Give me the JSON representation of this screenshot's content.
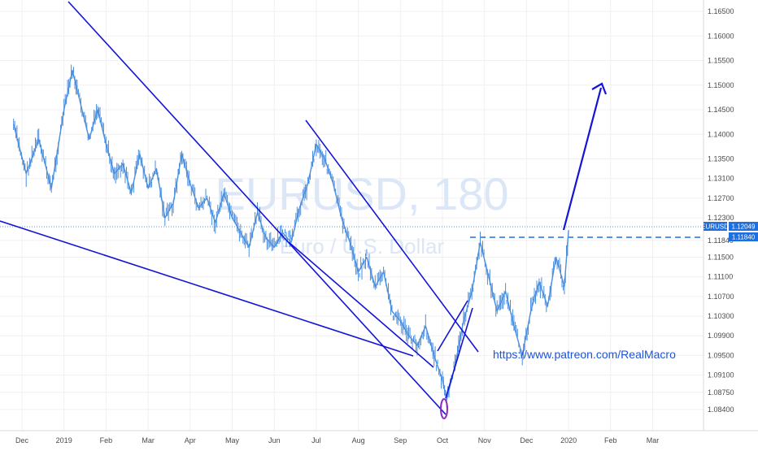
{
  "watermark": {
    "title": "EURUSD, 180",
    "subtitle": "Euro / U.S. Dollar"
  },
  "annotation": {
    "link": "https://www.patreon.com/RealMacro"
  },
  "price_tags": {
    "current": {
      "symbol": "EURUSD",
      "value": "1.12049"
    },
    "resistance": {
      "value": "1.11840"
    }
  },
  "colors": {
    "series": "#4a8fe0",
    "trendline": "#1414d6",
    "marker": "#8a2bbf",
    "tag_bg": "#1e6fe0",
    "grid": "#f0f0f0"
  },
  "chart_data": {
    "type": "line",
    "symbol": "EURUSD",
    "timeframe": "180",
    "ylim": [
      1.0825,
      1.1665
    ],
    "y_ticks": [
      "1.16500",
      "1.16000",
      "1.15500",
      "1.15000",
      "1.14500",
      "1.14000",
      "1.13500",
      "1.13100",
      "1.12700",
      "1.12300",
      "1.11840",
      "1.11500",
      "1.11100",
      "1.10700",
      "1.10300",
      "1.09900",
      "1.09500",
      "1.09100",
      "1.08750",
      "1.08400"
    ],
    "x_ticks": [
      "Dec",
      "2019",
      "Feb",
      "Mar",
      "Apr",
      "May",
      "Jun",
      "Jul",
      "Aug",
      "Sep",
      "Oct",
      "Nov",
      "Dec",
      "2020",
      "Feb",
      "Mar"
    ],
    "x_months": [
      -1,
      0,
      1,
      2,
      3,
      4,
      5,
      6,
      7,
      8,
      9,
      10,
      11,
      12,
      13,
      14
    ],
    "x": [
      -1.2,
      -0.9,
      -0.6,
      -0.3,
      0.0,
      0.2,
      0.4,
      0.6,
      0.8,
      1.0,
      1.2,
      1.4,
      1.6,
      1.8,
      2.0,
      2.2,
      2.4,
      2.6,
      2.8,
      3.0,
      3.2,
      3.4,
      3.6,
      3.8,
      4.0,
      4.2,
      4.4,
      4.6,
      4.8,
      5.0,
      5.2,
      5.4,
      5.6,
      5.8,
      6.0,
      6.2,
      6.4,
      6.6,
      6.8,
      7.0,
      7.2,
      7.4,
      7.6,
      7.8,
      8.0,
      8.2,
      8.4,
      8.6,
      8.8,
      9.0,
      9.1,
      9.3,
      9.5,
      9.7,
      9.9,
      10.1,
      10.3,
      10.5,
      10.7,
      10.9,
      11.1,
      11.3,
      11.5,
      11.7,
      11.9,
      12.0
    ],
    "y": [
      1.142,
      1.132,
      1.139,
      1.129,
      1.145,
      1.153,
      1.146,
      1.139,
      1.145,
      1.138,
      1.132,
      1.134,
      1.128,
      1.136,
      1.129,
      1.133,
      1.123,
      1.126,
      1.136,
      1.13,
      1.125,
      1.127,
      1.122,
      1.128,
      1.123,
      1.12,
      1.117,
      1.124,
      1.119,
      1.117,
      1.12,
      1.118,
      1.125,
      1.13,
      1.138,
      1.135,
      1.13,
      1.123,
      1.118,
      1.112,
      1.115,
      1.109,
      1.112,
      1.104,
      1.102,
      1.099,
      1.097,
      1.101,
      1.095,
      1.09,
      1.086,
      1.093,
      1.102,
      1.108,
      1.118,
      1.111,
      1.104,
      1.108,
      1.101,
      1.095,
      1.104,
      1.11,
      1.105,
      1.115,
      1.109,
      1.1205
    ]
  }
}
